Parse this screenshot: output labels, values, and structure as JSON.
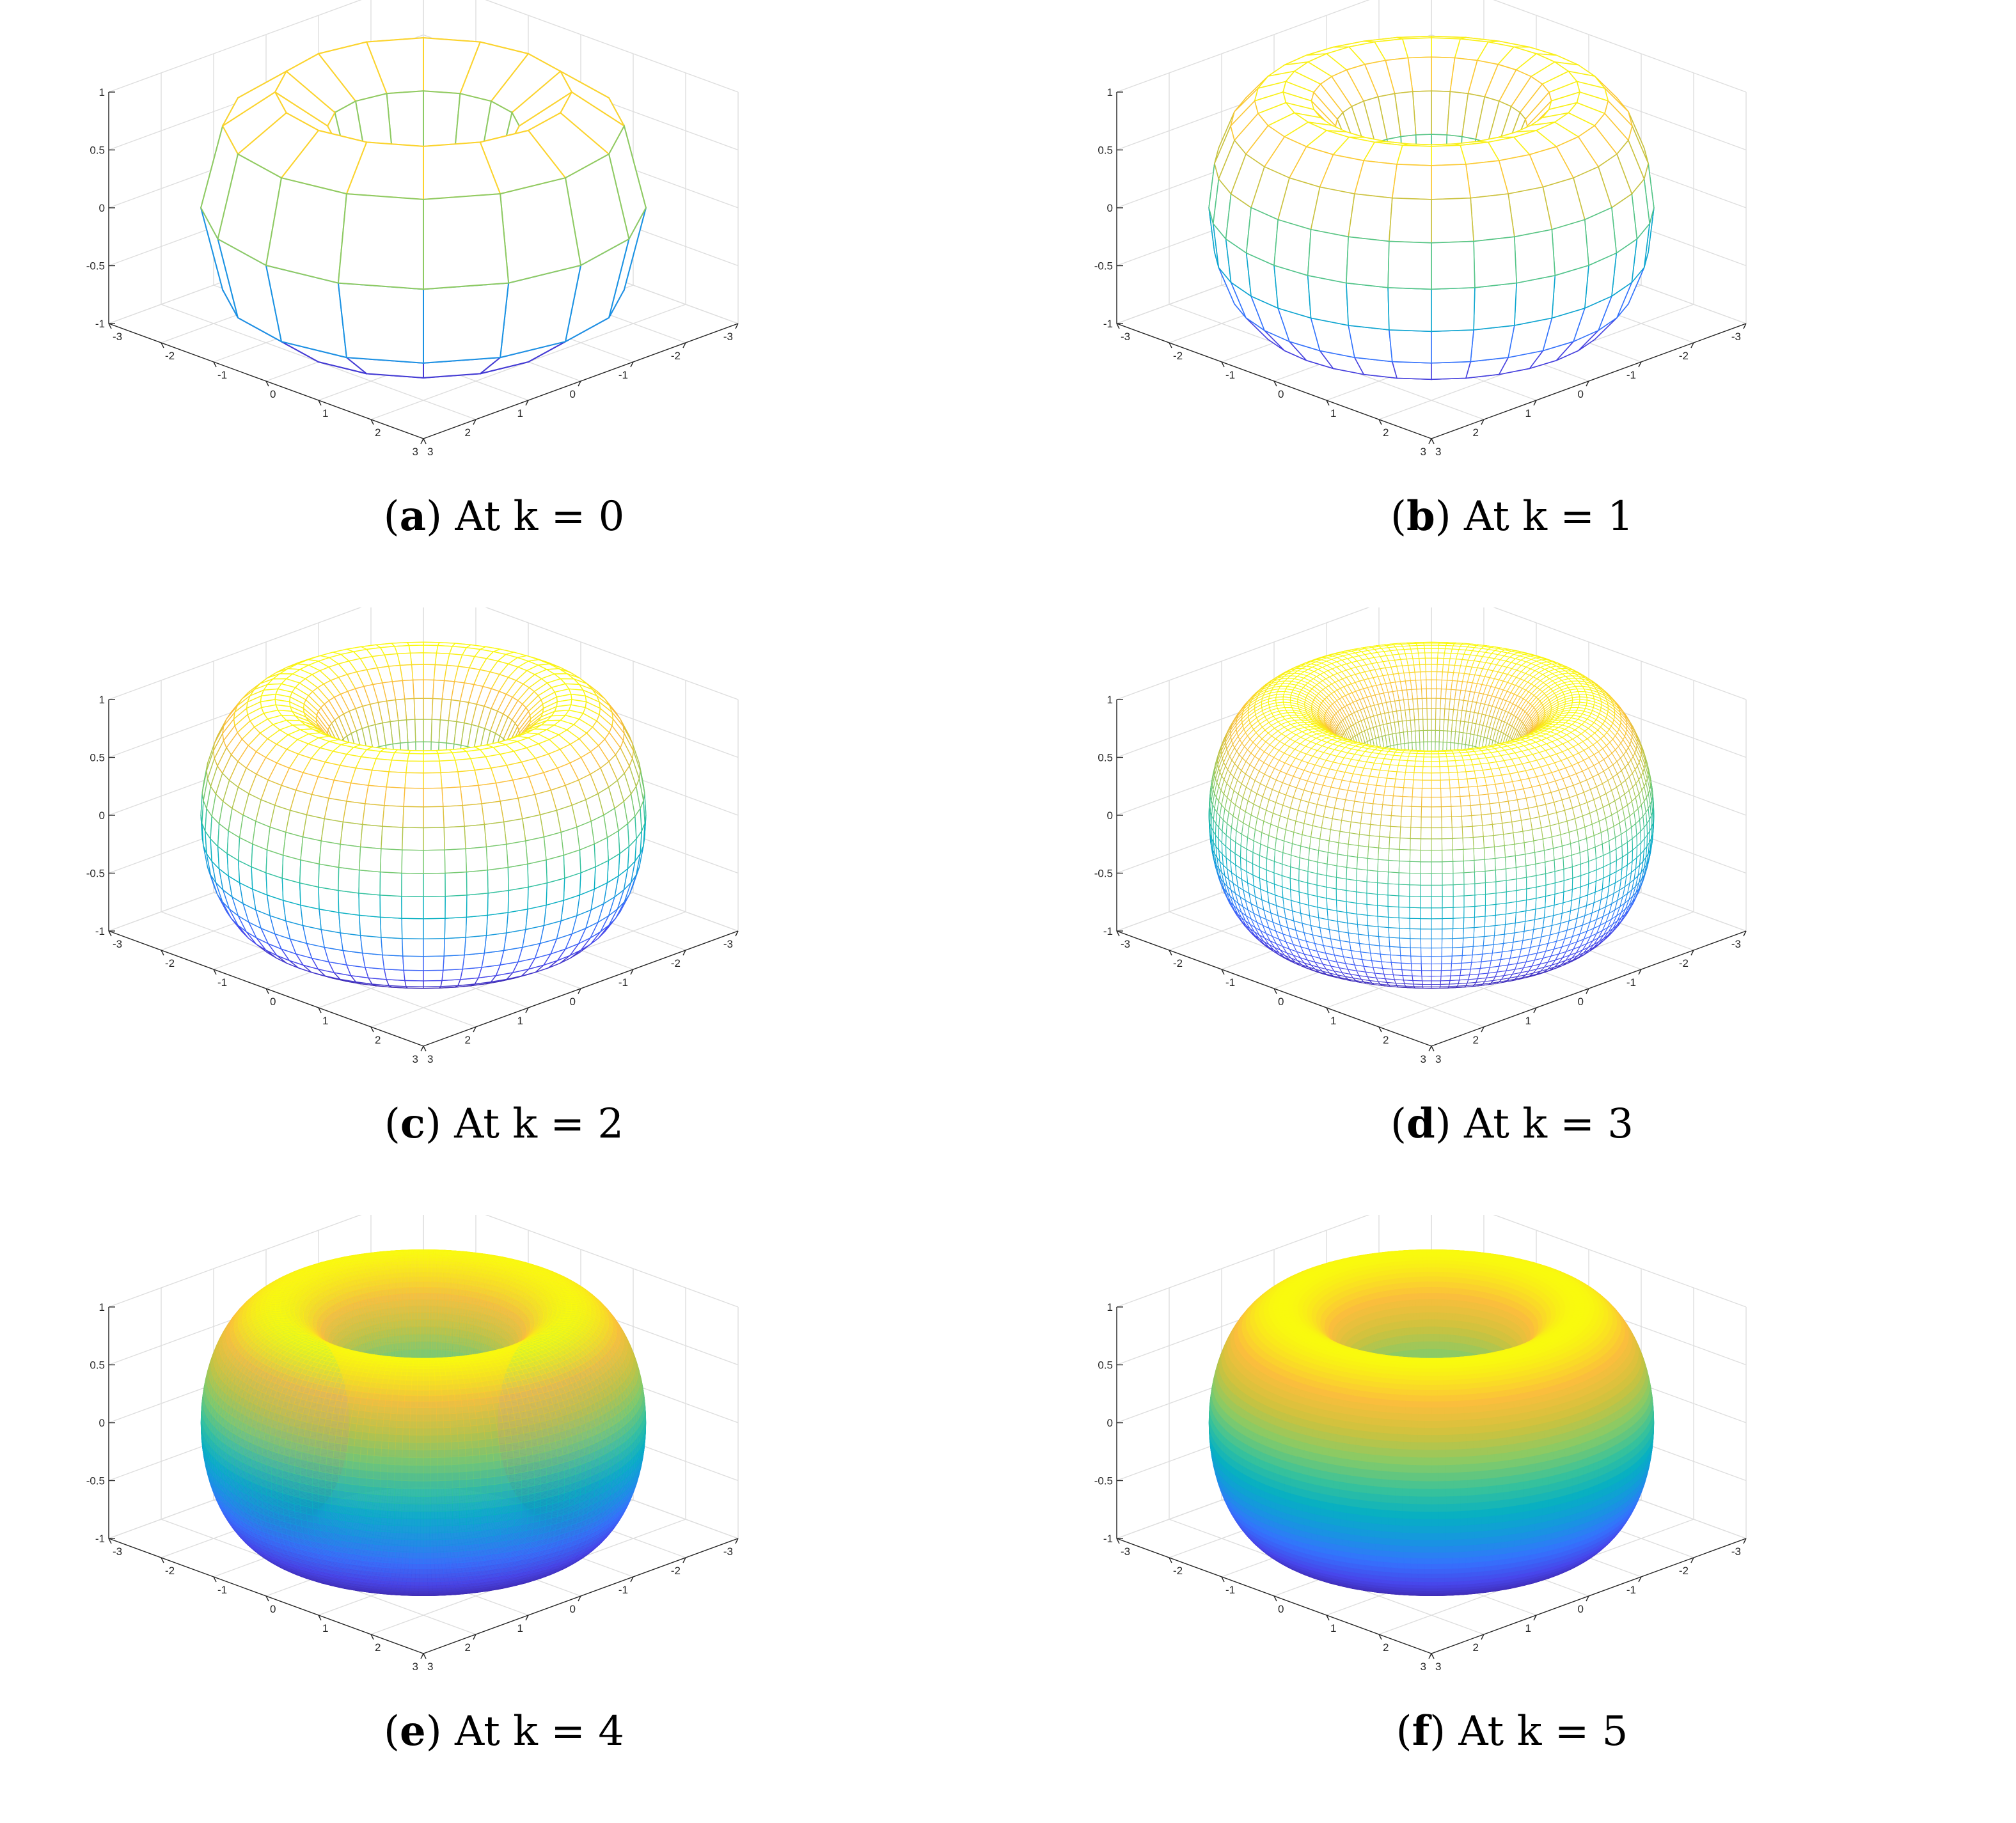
{
  "figure": {
    "panels": [
      {
        "letter": "a",
        "caption": "At k = 0",
        "k": 0,
        "u_segments": 16,
        "v_segments": 8
      },
      {
        "letter": "b",
        "caption": "At k = 1",
        "k": 1,
        "u_segments": 32,
        "v_segments": 16
      },
      {
        "letter": "c",
        "caption": "At k = 2",
        "k": 2,
        "u_segments": 64,
        "v_segments": 32
      },
      {
        "letter": "d",
        "caption": "At k = 3",
        "k": 3,
        "u_segments": 128,
        "v_segments": 64
      },
      {
        "letter": "e",
        "caption": "At k = 4",
        "k": 4,
        "u_segments": 256,
        "v_segments": 128
      },
      {
        "letter": "f",
        "caption": "At k = 5",
        "k": 5,
        "u_segments": 512,
        "v_segments": 256
      }
    ],
    "axes": {
      "x_ticks": [
        "-3",
        "-2",
        "-1",
        "0",
        "1",
        "2",
        "3"
      ],
      "y_ticks": [
        "-3",
        "-2",
        "-1",
        "0",
        "1",
        "2",
        "3"
      ],
      "z_ticks": [
        "-1",
        "-0.5",
        "0",
        "0.5",
        "1"
      ],
      "xlim": [
        -3,
        3
      ],
      "ylim": [
        -3,
        3
      ],
      "zlim": [
        -1,
        1
      ],
      "grid": true
    },
    "surface": {
      "shape": "torus",
      "major_radius": 2,
      "minor_radius": 1,
      "colormap": "parula"
    }
  }
}
